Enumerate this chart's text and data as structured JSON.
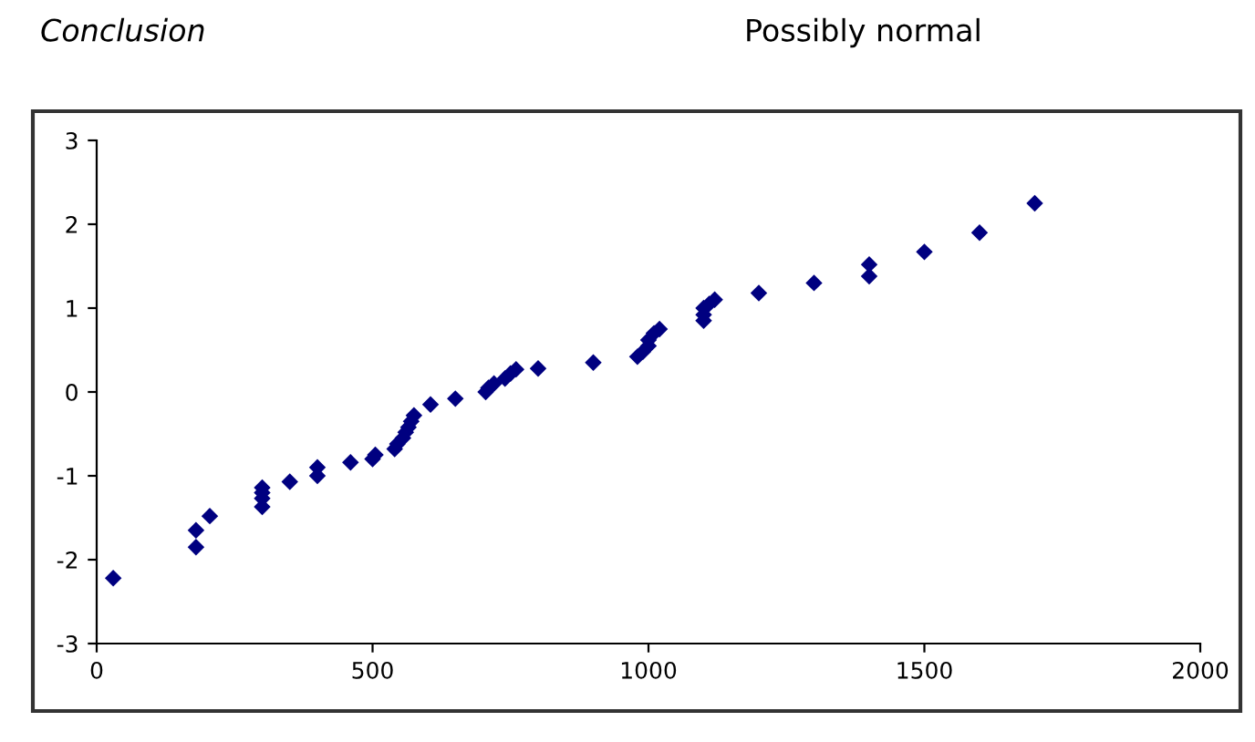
{
  "chart_data": {
    "type": "scatter",
    "marker": "diamond",
    "grid": false,
    "legend": false,
    "annotations": [
      "Conclusion",
      "Possibly normal"
    ],
    "xlim": [
      0,
      2000
    ],
    "xticks": [
      0,
      500,
      1000,
      1500,
      2000
    ],
    "ylim": [
      -3,
      3
    ],
    "yticks": [
      -3,
      -2,
      -1,
      0,
      1,
      2,
      3
    ],
    "series": [
      {
        "color": "#000080",
        "x": [
          30,
          180,
          180,
          205,
          300,
          300,
          300,
          300,
          350,
          400,
          400,
          460,
          500,
          505,
          540,
          545,
          555,
          560,
          565,
          570,
          575,
          605,
          650,
          705,
          710,
          720,
          740,
          750,
          760,
          800,
          900,
          980,
          990,
          1000,
          1000,
          1010,
          1020,
          1100,
          1100,
          1100,
          1110,
          1120,
          1200,
          1300,
          1400,
          1400,
          1500,
          1600,
          1700
        ],
        "values": [
          -2.22,
          -1.85,
          -1.65,
          -1.48,
          -1.37,
          -1.27,
          -1.2,
          -1.14,
          -1.07,
          -1.0,
          -0.9,
          -0.84,
          -0.8,
          -0.75,
          -0.68,
          -0.62,
          -0.55,
          -0.48,
          -0.42,
          -0.35,
          -0.28,
          -0.15,
          -0.08,
          0.0,
          0.05,
          0.1,
          0.16,
          0.22,
          0.27,
          0.28,
          0.35,
          0.42,
          0.48,
          0.55,
          0.62,
          0.7,
          0.75,
          0.85,
          0.92,
          1.0,
          1.05,
          1.1,
          1.18,
          1.3,
          1.38,
          1.52,
          1.67,
          1.9,
          2.25
        ]
      }
    ]
  }
}
